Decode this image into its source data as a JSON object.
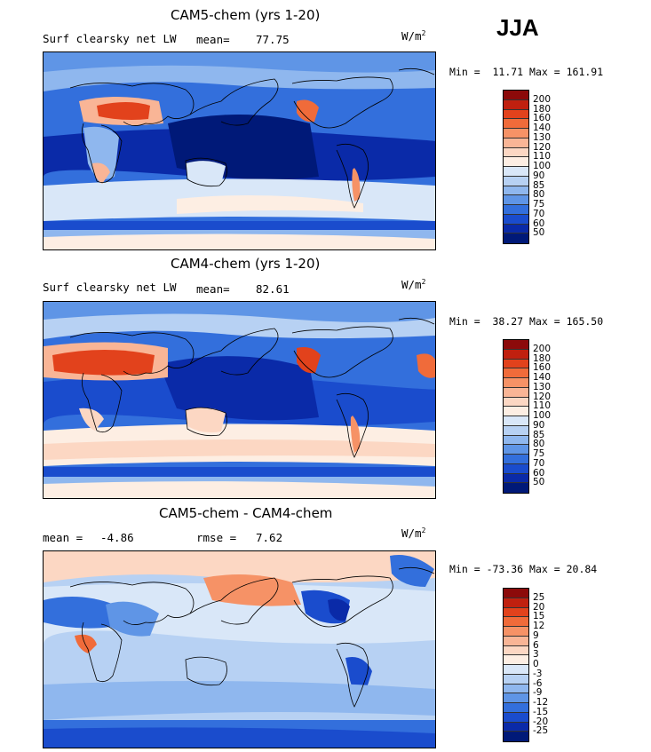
{
  "season": "JJA",
  "panels": [
    {
      "title": "CAM5-chem (yrs 1-20)",
      "left_label": "Surf clearsky net LW",
      "mean_label": "mean=",
      "mean_value": "77.75",
      "units": "W/m",
      "units_exp": "2",
      "min_label": "Min =",
      "min_value": "11.71",
      "max_label": "Max =",
      "max_value": "161.91",
      "colorbar": {
        "levels": [
          "200",
          "180",
          "160",
          "140",
          "130",
          "120",
          "110",
          "100",
          "90",
          "85",
          "80",
          "75",
          "70",
          "60",
          "50"
        ],
        "colors": [
          "#8c0a0a",
          "#c0200f",
          "#e2421c",
          "#f06b3a",
          "#f69266",
          "#f9b596",
          "#fcd7c3",
          "#fdeee3",
          "#d9e7f8",
          "#b7d1f3",
          "#8fb7ee",
          "#5f95e6",
          "#336fdc",
          "#1a4ccd",
          "#0a2aa8",
          "#001978"
        ]
      }
    },
    {
      "title": "CAM4-chem (yrs 1-20)",
      "left_label": "Surf clearsky net LW",
      "mean_label": "mean=",
      "mean_value": "82.61",
      "units": "W/m",
      "units_exp": "2",
      "min_label": "Min =",
      "min_value": "38.27",
      "max_label": "Max =",
      "max_value": "165.50",
      "colorbar": {
        "levels": [
          "200",
          "180",
          "160",
          "140",
          "130",
          "120",
          "110",
          "100",
          "90",
          "85",
          "80",
          "75",
          "70",
          "60",
          "50"
        ],
        "colors": [
          "#8c0a0a",
          "#c0200f",
          "#e2421c",
          "#f06b3a",
          "#f69266",
          "#f9b596",
          "#fcd7c3",
          "#fdeee3",
          "#d9e7f8",
          "#b7d1f3",
          "#8fb7ee",
          "#5f95e6",
          "#336fdc",
          "#1a4ccd",
          "#0a2aa8",
          "#001978"
        ]
      }
    },
    {
      "title": "CAM5-chem - CAM4-chem",
      "left_label": "mean =",
      "mean_label": "rmse =",
      "left_value": "-4.86",
      "mean_value": "7.62",
      "units": "W/m",
      "units_exp": "2",
      "min_label": "Min =",
      "min_value": "-73.36",
      "max_label": "Max =",
      "max_value": "20.84",
      "colorbar": {
        "levels": [
          "25",
          "20",
          "15",
          "12",
          "9",
          "6",
          "3",
          "0",
          "-3",
          "-6",
          "-9",
          "-12",
          "-15",
          "-20",
          "-25"
        ],
        "colors": [
          "#8c0a0a",
          "#c0200f",
          "#e2421c",
          "#f06b3a",
          "#f69266",
          "#f9b596",
          "#fcd7c3",
          "#fdeee3",
          "#d9e7f8",
          "#b7d1f3",
          "#8fb7ee",
          "#5f95e6",
          "#336fdc",
          "#1a4ccd",
          "#0a2aa8",
          "#001978"
        ]
      }
    }
  ]
}
